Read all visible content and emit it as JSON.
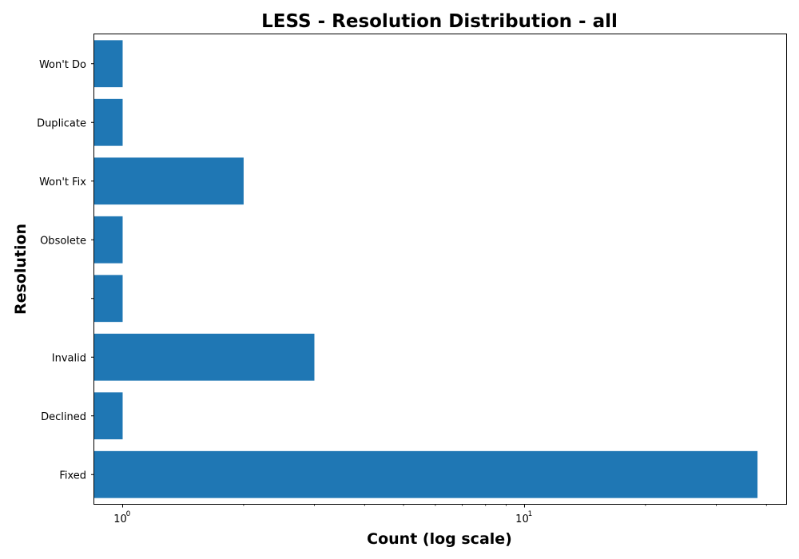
{
  "chart_data": {
    "type": "bar",
    "orientation": "horizontal",
    "title": "LESS - Resolution Distribution - all",
    "xlabel": "Count (log scale)",
    "ylabel": "Resolution",
    "x_scale": "log",
    "xlim": [
      0.85,
      45
    ],
    "x_major_ticks": [
      {
        "value": 1,
        "base": "10",
        "exp": "0"
      },
      {
        "value": 10,
        "base": "10",
        "exp": "1"
      }
    ],
    "x_minor_ticks": [
      2,
      3,
      4,
      5,
      6,
      7,
      8,
      9,
      20,
      30,
      40
    ],
    "categories": [
      "Fixed",
      "Declined",
      "Invalid",
      "",
      "Obsolete",
      "Won't Fix",
      "Duplicate",
      "Won't Do"
    ],
    "values": [
      38,
      1,
      3,
      1,
      1,
      2,
      1,
      1
    ],
    "bar_color": "#1f77b4",
    "grid": false,
    "legend": "none"
  }
}
